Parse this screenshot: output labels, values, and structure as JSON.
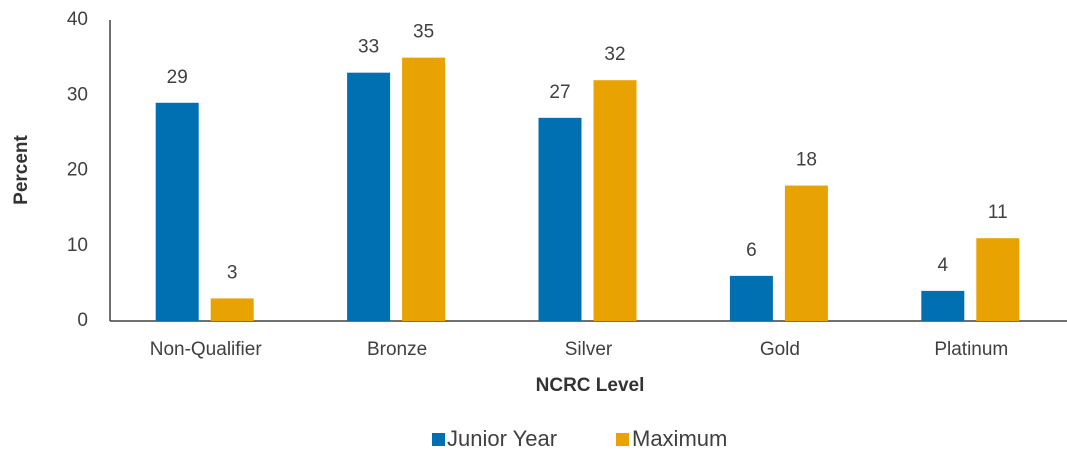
{
  "chart_data": {
    "type": "bar",
    "xlabel": "NCRC Level",
    "ylabel": "Percent",
    "categories": [
      "Non-Qualifier",
      "Bronze",
      "Silver",
      "Gold",
      "Platinum"
    ],
    "series": [
      {
        "name": "Junior Year",
        "color": "#0070b3",
        "values": [
          29,
          33,
          27,
          6,
          4
        ]
      },
      {
        "name": "Maximum",
        "color": "#e8a202",
        "values": [
          3,
          35,
          32,
          18,
          11
        ]
      }
    ],
    "ylim": [
      0,
      40
    ],
    "yticks": [
      0,
      10,
      20,
      30,
      40
    ],
    "grid": false,
    "legend": "bottom"
  }
}
